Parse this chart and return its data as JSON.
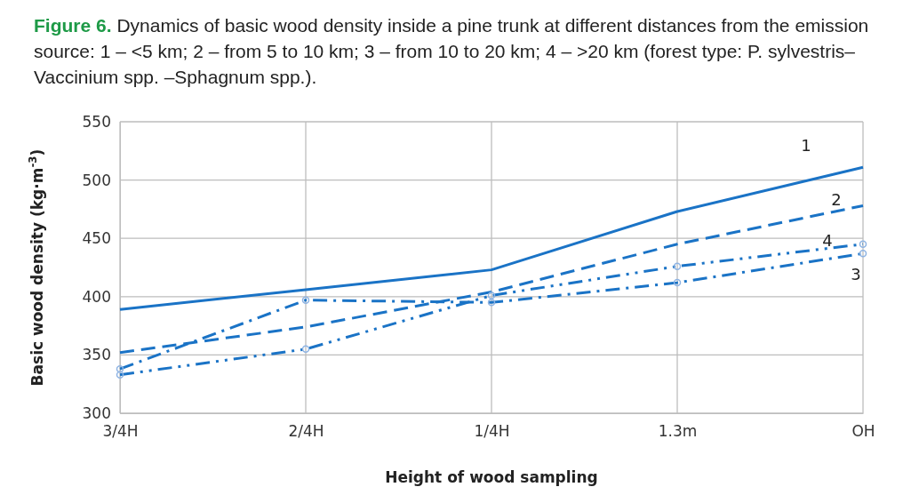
{
  "chart_data": {
    "type": "line",
    "title": "Figure 6.",
    "subtitle": "Dynamics of basic wood density inside a pine trunk at different distances from the emission source: 1 – <5 km; 2 – from 5 to 10 km; 3 – from 10 to 20 km; 4 – >20 km (forest type: P. sylvestris–Vaccinium spp. –Sphagnum spp.).",
    "xlabel": "Height of wood sampling",
    "ylabel": "Basic wood density (kg·m$^{-3}$)",
    "categories": [
      "3/4H",
      "2/4H",
      "1/4H",
      "1.3m",
      "OH"
    ],
    "ylim": [
      300,
      550
    ],
    "yticks": [
      300,
      350,
      400,
      450,
      500,
      550
    ],
    "grid": true,
    "series": [
      {
        "name": "1",
        "color": "#1a73c6",
        "values": [
          389,
          406,
          423,
          473,
          511
        ],
        "line_style": "solid",
        "marker": "none"
      },
      {
        "name": "2",
        "color": "#1a73c6",
        "values": [
          352,
          374,
          404,
          445,
          478
        ],
        "line_style": "dashed",
        "marker": "none"
      },
      {
        "name": "3",
        "color": "#1a73c6",
        "values": [
          338,
          397,
          395,
          412,
          437
        ],
        "line_style": "dashdot",
        "marker": "circle"
      },
      {
        "name": "4",
        "color": "#1a73c6",
        "values": [
          333,
          355,
          401,
          426,
          445
        ],
        "line_style": "dashdotdot",
        "marker": "circle"
      }
    ]
  }
}
